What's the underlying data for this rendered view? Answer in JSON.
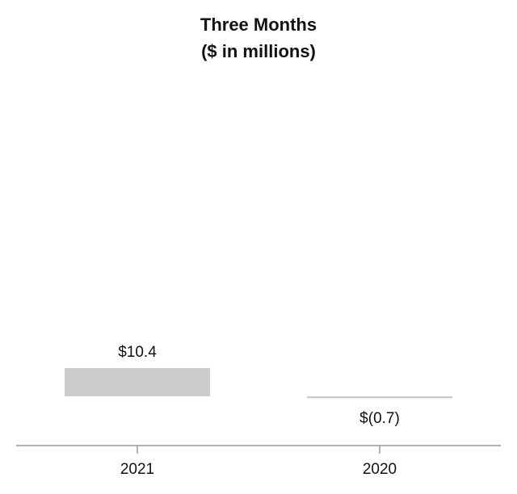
{
  "chart_data": {
    "type": "bar",
    "title": "Three Months",
    "subtitle": "($ in millions)",
    "categories": [
      "2021",
      "2020"
    ],
    "values": [
      10.4,
      -0.7
    ],
    "value_labels": [
      "$10.4",
      "$(0.7)"
    ],
    "color": "#cccccc"
  }
}
